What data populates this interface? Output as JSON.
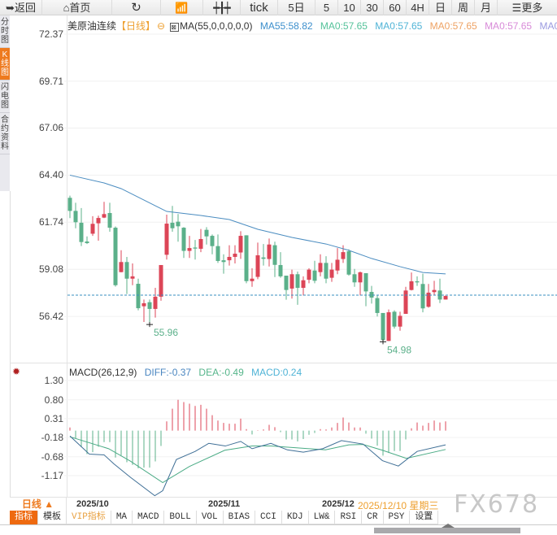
{
  "toolbar": {
    "items": [
      {
        "label": "返回",
        "icon": "back-arrow-icon"
      },
      {
        "label": "首页",
        "icon": "home-icon"
      },
      {
        "label": "",
        "icon": "refresh-icon"
      },
      {
        "label": "",
        "icon": "bar-chart-icon"
      },
      {
        "label": "",
        "icon": "candlestick-icon"
      },
      {
        "label": "tick"
      },
      {
        "label": "5日"
      },
      {
        "label": "5"
      },
      {
        "label": "10"
      },
      {
        "label": "30"
      },
      {
        "label": "60"
      },
      {
        "label": "4H"
      },
      {
        "label": "日"
      },
      {
        "label": "周"
      },
      {
        "label": "月"
      },
      {
        "label": "更多",
        "icon": "menu-icon"
      }
    ]
  },
  "left_tabs": [
    {
      "label": "分时图"
    },
    {
      "label": "K线图",
      "active": true
    },
    {
      "label": "闪电图"
    },
    {
      "label": "合约资料"
    }
  ],
  "legend": {
    "title": "美原油连续",
    "period": "【日线】",
    "ma_params": "MA(55,0,0,0,0,0)",
    "ma_values": [
      {
        "label": "MA55:58.82",
        "color": "#3d8fcc"
      },
      {
        "label": "MA0:57.65",
        "color": "#55c29a"
      },
      {
        "label": "MA0:57.65",
        "color": "#4fb3d6"
      },
      {
        "label": "MA0:57.65",
        "color": "#eea263"
      },
      {
        "label": "MA0:57.65",
        "color": "#d88ad8"
      },
      {
        "label": "MA0:57.65",
        "color": "#9a9ae0"
      }
    ]
  },
  "price_axis": {
    "ticks": [
      "72.37",
      "69.71",
      "67.06",
      "64.40",
      "61.74",
      "59.08",
      "56.42"
    ]
  },
  "macd_axis": {
    "ticks": [
      "1.30",
      "0.80",
      "0.31",
      "-0.18",
      "-0.68",
      "-1.17"
    ]
  },
  "macd_legend": {
    "name": "MACD(26,12,9)",
    "diff": "DIFF:-0.37",
    "dea": "DEA:-0.49",
    "macd": "MACD:0.24"
  },
  "colors": {
    "up": "#dc4557",
    "down": "#5bb08a",
    "ma55": "#4a8cc0",
    "diff": "#3f6f96",
    "dea": "#4aab85",
    "accent": "#ee7a1e"
  },
  "chart_data": [
    {
      "type": "candlestick",
      "title": "美原油连续",
      "period": "日线",
      "ylim": [
        53.85,
        72.7
      ],
      "yticks": [
        72.37,
        69.71,
        67.06,
        64.4,
        61.74,
        59.08,
        56.42
      ],
      "x_labels": [
        {
          "index": 1,
          "label": "2025/10"
        },
        {
          "index": 24,
          "label": "2025/11"
        },
        {
          "index": 44,
          "label": "2025/12"
        }
      ],
      "ohlc": [
        [
          63.12,
          63.24,
          61.97,
          62.38
        ],
        [
          62.38,
          62.84,
          61.4,
          61.74
        ],
        [
          61.71,
          62.54,
          60.39,
          60.62
        ],
        [
          60.65,
          60.94,
          60.51,
          60.56
        ],
        [
          61.09,
          62.08,
          60.97,
          61.65
        ],
        [
          61.68,
          62.11,
          60.7,
          61.98
        ],
        [
          62.0,
          62.89,
          61.97,
          62.2
        ],
        [
          62.26,
          62.84,
          61.2,
          61.43
        ],
        [
          61.43,
          61.5,
          58.1,
          58.18
        ],
        [
          58.92,
          60.16,
          58.91,
          59.49
        ],
        [
          59.49,
          59.78,
          57.68,
          58.55
        ],
        [
          58.55,
          59.41,
          58.18,
          58.68
        ],
        [
          58.26,
          58.55,
          56.76,
          56.88
        ],
        [
          56.99,
          57.37,
          56.1,
          57.16
        ],
        [
          57.22,
          57.37,
          55.96,
          56.84
        ],
        [
          56.84,
          58.03,
          56.35,
          57.53
        ],
        [
          57.53,
          59.32,
          57.3,
          59.32
        ],
        [
          59.9,
          62.17,
          59.63,
          61.66
        ],
        [
          61.71,
          62.66,
          61.2,
          61.4
        ],
        [
          61.77,
          62.2,
          60.64,
          61.51
        ],
        [
          61.43,
          61.46,
          59.72,
          60.12
        ],
        [
          60.12,
          60.97,
          59.72,
          60.28
        ],
        [
          60.31,
          60.74,
          59.63,
          60.25
        ],
        [
          60.24,
          61.36,
          60.05,
          60.79
        ],
        [
          61.31,
          61.46,
          60.48,
          60.94
        ],
        [
          60.97,
          61.05,
          59.93,
          60.39
        ],
        [
          60.39,
          61.05,
          59.44,
          59.55
        ],
        [
          59.59,
          59.93,
          58.83,
          59.49
        ],
        [
          59.59,
          60.44,
          59.29,
          59.78
        ],
        [
          59.78,
          60.44,
          59.41,
          59.96
        ],
        [
          60.03,
          61.23,
          59.67,
          60.97
        ],
        [
          61.0,
          61.0,
          58.29,
          58.41
        ],
        [
          58.41,
          59.14,
          58.09,
          58.55
        ],
        [
          58.65,
          60.59,
          58.52,
          59.87
        ],
        [
          59.75,
          60.51,
          59.29,
          59.67
        ],
        [
          59.66,
          60.82,
          59.24,
          60.48
        ],
        [
          60.44,
          60.64,
          58.64,
          59.33
        ],
        [
          59.32,
          60.05,
          58.6,
          58.68
        ],
        [
          58.72,
          58.72,
          57.36,
          57.91
        ],
        [
          57.99,
          59.06,
          57.42,
          58.8
        ],
        [
          58.8,
          58.95,
          57.07,
          58.03
        ],
        [
          58.03,
          58.68,
          57.6,
          58.46
        ],
        [
          58.49,
          59.14,
          58.29,
          59.06
        ],
        [
          59.01,
          59.56,
          58.29,
          58.43
        ],
        [
          58.92,
          59.93,
          58.68,
          59.44
        ],
        [
          59.44,
          59.82,
          58.29,
          58.55
        ],
        [
          58.6,
          59.44,
          58.37,
          59.06
        ],
        [
          59.01,
          60.28,
          58.8,
          59.62
        ],
        [
          59.66,
          60.44,
          59.44,
          60.05
        ],
        [
          60.1,
          60.21,
          58.72,
          58.78
        ],
        [
          58.8,
          59.1,
          58.09,
          58.34
        ],
        [
          58.34,
          58.95,
          57.6,
          58.91
        ],
        [
          58.86,
          58.86,
          56.99,
          57.83
        ],
        [
          57.8,
          58.14,
          57.14,
          57.48
        ],
        [
          57.45,
          57.63,
          56.41,
          56.61
        ],
        [
          56.61,
          56.61,
          54.98,
          55.08
        ],
        [
          55.03,
          56.81,
          55.03,
          56.65
        ],
        [
          56.68,
          56.76,
          55.73,
          55.84
        ],
        [
          55.84,
          56.68,
          55.61,
          56.45
        ],
        [
          56.56,
          58.09,
          56.56,
          57.88
        ],
        [
          57.91,
          58.9,
          57.88,
          58.4
        ],
        [
          58.4,
          58.68,
          58.14,
          58.34
        ],
        [
          58.25,
          58.83,
          56.65,
          56.87
        ],
        [
          56.96,
          58.25,
          56.91,
          57.76
        ],
        [
          57.79,
          58.43,
          57.63,
          57.91
        ],
        [
          57.88,
          58.55,
          57.17,
          57.37
        ],
        [
          57.37,
          57.6,
          57.37,
          57.57
        ]
      ],
      "ma55": [
        [
          0,
          64.4
        ],
        [
          6,
          63.96
        ],
        [
          9,
          63.64
        ],
        [
          15,
          62.67
        ],
        [
          17,
          62.35
        ],
        [
          23,
          62.12
        ],
        [
          28,
          61.89
        ],
        [
          33,
          61.34
        ],
        [
          39,
          60.88
        ],
        [
          45,
          60.51
        ],
        [
          49,
          60.15
        ],
        [
          53,
          59.69
        ],
        [
          58,
          59.23
        ],
        [
          62,
          58.9
        ],
        [
          66,
          58.82
        ]
      ],
      "current_price": 57.62,
      "annotations": [
        {
          "index": 14,
          "label": "55.96",
          "value": 55.96
        },
        {
          "index": 55,
          "label": "54.98",
          "value": 54.98
        }
      ],
      "hover_label": "2025/12/10 星期三"
    },
    {
      "type": "macd",
      "title": "MACD(26,12,9)",
      "ylim": [
        -1.72,
        1.64
      ],
      "yticks": [
        1.3,
        0.8,
        0.31,
        -0.18,
        -0.68,
        -1.17
      ],
      "histogram": [
        0.08,
        -0.21,
        -0.43,
        -0.61,
        -0.56,
        -0.42,
        -0.3,
        -0.3,
        -0.7,
        -0.64,
        -0.82,
        -0.89,
        -0.98,
        -0.96,
        -0.96,
        -0.8,
        -0.4,
        0.24,
        0.57,
        0.8,
        0.74,
        0.7,
        0.64,
        0.67,
        0.57,
        0.4,
        0.26,
        0.2,
        0.18,
        0.18,
        0.31,
        0.04,
        -0.1,
        0.01,
        0.03,
        0.15,
        0.09,
        -0.04,
        -0.23,
        -0.23,
        -0.28,
        -0.22,
        -0.11,
        -0.06,
        0.04,
        0.03,
        0.08,
        0.2,
        0.34,
        0.21,
        0.08,
        0.08,
        -0.08,
        -0.21,
        -0.39,
        -0.65,
        -0.58,
        -0.53,
        -0.53,
        -0.23,
        0.06,
        0.21,
        0.13,
        0.2,
        0.26,
        0.21,
        0.24
      ],
      "diff": [
        [
          0,
          -0.14
        ],
        [
          3.4,
          -0.61
        ],
        [
          6,
          -0.63
        ],
        [
          7.7,
          -0.86
        ],
        [
          10.6,
          -1.21
        ],
        [
          14.9,
          -1.69
        ],
        [
          16.3,
          -1.56
        ],
        [
          18.7,
          -0.75
        ],
        [
          22,
          -0.54
        ],
        [
          24.4,
          -0.33
        ],
        [
          27.3,
          -0.4
        ],
        [
          30,
          -0.28
        ],
        [
          32,
          -0.47
        ],
        [
          35.3,
          -0.33
        ],
        [
          38.2,
          -0.5
        ],
        [
          41,
          -0.56
        ],
        [
          44.4,
          -0.47
        ],
        [
          47.7,
          -0.26
        ],
        [
          51.5,
          -0.35
        ],
        [
          54.9,
          -0.78
        ],
        [
          57.7,
          -0.92
        ],
        [
          61,
          -0.54
        ],
        [
          66,
          -0.37
        ]
      ],
      "dea": [
        [
          0,
          -0.16
        ],
        [
          6.8,
          -0.47
        ],
        [
          10.6,
          -0.79
        ],
        [
          16.3,
          -1.35
        ],
        [
          21,
          -0.93
        ],
        [
          27.2,
          -0.51
        ],
        [
          32,
          -0.4
        ],
        [
          35.3,
          -0.4
        ],
        [
          44.9,
          -0.5
        ],
        [
          49,
          -0.37
        ],
        [
          51.5,
          -0.36
        ],
        [
          54.9,
          -0.51
        ],
        [
          59.1,
          -0.72
        ],
        [
          66,
          -0.49
        ]
      ]
    }
  ],
  "bottom": {
    "period_label": "日线 ▲",
    "hover_date": "2025/12/10",
    "hover_weekday": "星期三",
    "watermark": "FX678"
  },
  "indicator_tabs": [
    {
      "label": "指标",
      "active": true
    },
    {
      "label": "模板"
    },
    {
      "label": "VIP指标",
      "vip": true
    },
    {
      "label": "MA"
    },
    {
      "label": "MACD"
    },
    {
      "label": "BOLL"
    },
    {
      "label": "VOL"
    },
    {
      "label": "BIAS"
    },
    {
      "label": "CCI"
    },
    {
      "label": "KDJ"
    },
    {
      "label": "LW&"
    },
    {
      "label": "RSI"
    },
    {
      "label": "CR"
    },
    {
      "label": "PSY"
    },
    {
      "label": "设置"
    }
  ]
}
